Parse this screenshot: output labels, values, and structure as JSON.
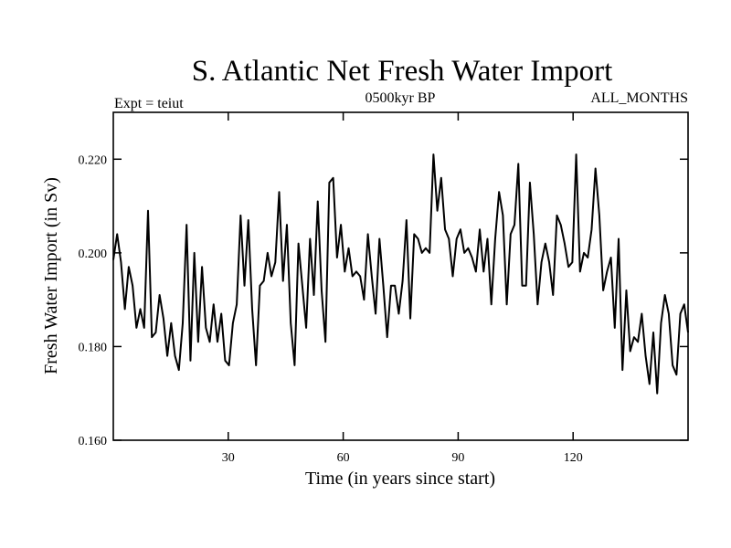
{
  "chart_data": {
    "type": "line",
    "title": "S. Atlantic Net Fresh Water Import",
    "subtitle_left": "Expt = teiut",
    "subtitle_center": "0500kyr BP",
    "subtitle_right": "ALL_MONTHS",
    "xlabel": "Time (in years since start)",
    "ylabel": "Fresh Water Import (in Sv)",
    "xlim": [
      0,
      150
    ],
    "ylim": [
      0.16,
      0.23
    ],
    "xticks": [
      30,
      60,
      90,
      120
    ],
    "xtick_labels": [
      "30",
      "60",
      "90",
      "120"
    ],
    "yticks": [
      0.16,
      0.18,
      0.2,
      0.22
    ],
    "ytick_labels": [
      "0.160",
      "0.180",
      "0.200",
      "0.220"
    ],
    "series": [
      {
        "name": "Fresh Water Import",
        "color": "#000000",
        "values": [
          0.1985,
          0.204,
          0.198,
          0.188,
          0.197,
          0.193,
          0.184,
          0.188,
          0.184,
          0.209,
          0.182,
          0.183,
          0.191,
          0.186,
          0.178,
          0.185,
          0.178,
          0.175,
          0.185,
          0.206,
          0.177,
          0.2,
          0.181,
          0.197,
          0.184,
          0.181,
          0.189,
          0.181,
          0.187,
          0.177,
          0.176,
          0.185,
          0.189,
          0.208,
          0.193,
          0.207,
          0.188,
          0.176,
          0.193,
          0.194,
          0.2,
          0.195,
          0.198,
          0.213,
          0.194,
          0.206,
          0.185,
          0.176,
          0.202,
          0.193,
          0.184,
          0.203,
          0.191,
          0.211,
          0.192,
          0.181,
          0.215,
          0.216,
          0.199,
          0.206,
          0.196,
          0.201,
          0.195,
          0.196,
          0.195,
          0.19,
          0.204,
          0.195,
          0.187,
          0.203,
          0.193,
          0.182,
          0.193,
          0.193,
          0.187,
          0.194,
          0.207,
          0.186,
          0.204,
          0.203,
          0.2,
          0.201,
          0.2,
          0.221,
          0.209,
          0.216,
          0.205,
          0.203,
          0.195,
          0.203,
          0.205,
          0.2,
          0.201,
          0.199,
          0.196,
          0.205,
          0.196,
          0.203,
          0.189,
          0.203,
          0.213,
          0.208,
          0.189,
          0.204,
          0.206,
          0.219,
          0.193,
          0.193,
          0.215,
          0.204,
          0.189,
          0.198,
          0.202,
          0.198,
          0.191,
          0.208,
          0.206,
          0.202,
          0.197,
          0.198,
          0.221,
          0.196,
          0.2,
          0.199,
          0.205,
          0.218,
          0.208,
          0.192,
          0.196,
          0.199,
          0.184,
          0.203,
          0.175,
          0.192,
          0.179,
          0.182,
          0.181,
          0.187,
          0.178,
          0.172,
          0.183,
          0.17,
          0.185,
          0.191,
          0.187,
          0.176,
          0.174,
          0.187,
          0.189,
          0.183
        ]
      }
    ]
  }
}
